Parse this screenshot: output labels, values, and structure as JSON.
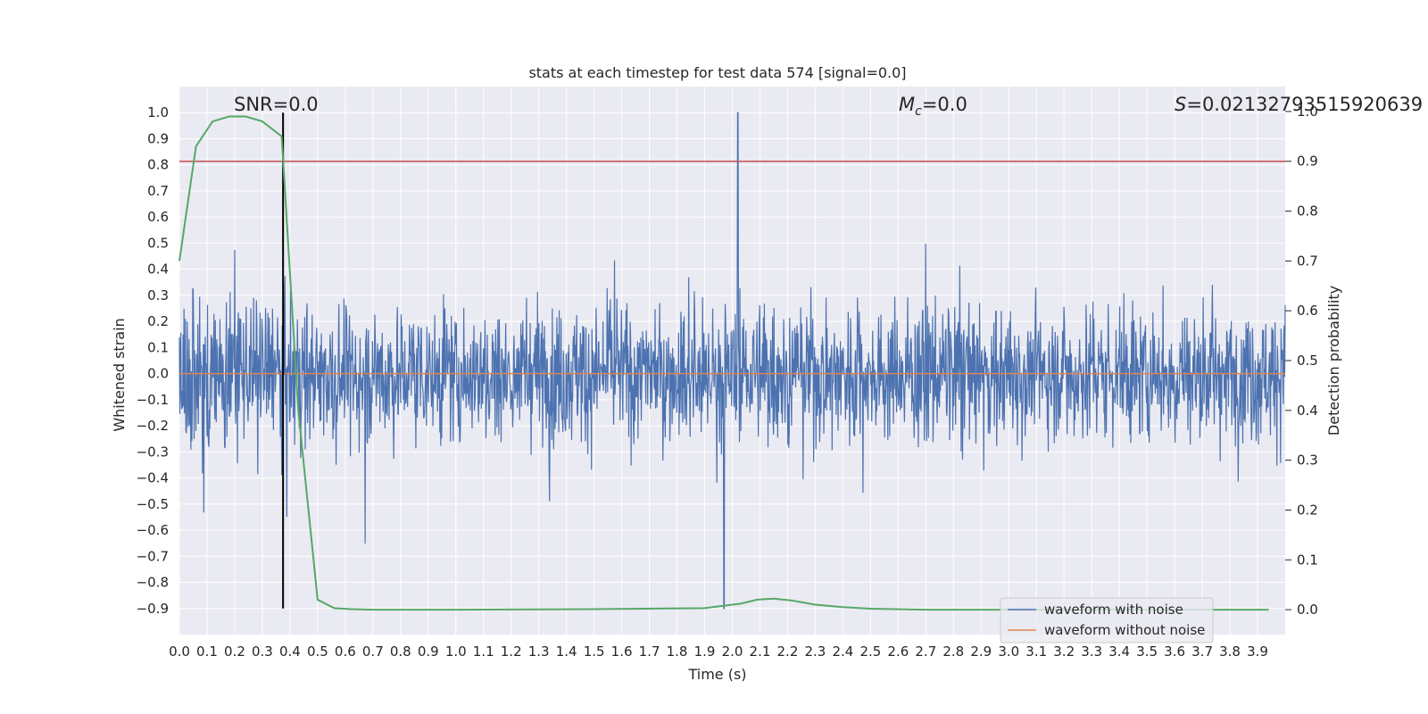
{
  "chart_data": {
    "type": "line",
    "title": "stats at each timestep for test data 574 [signal=0.0]",
    "xlabel": "Time (s)",
    "ylabel": "Whitened strain",
    "y2label": "Detection probability",
    "xlim": [
      0.0,
      4.0
    ],
    "ylim": [
      -1.0,
      1.1
    ],
    "y2lim": [
      -0.05,
      1.05
    ],
    "grid": true,
    "x_ticks": [
      "0.0",
      "0.1",
      "0.2",
      "0.3",
      "0.4",
      "0.5",
      "0.6",
      "0.7",
      "0.8",
      "0.9",
      "1.0",
      "1.1",
      "1.2",
      "1.3",
      "1.4",
      "1.5",
      "1.6",
      "1.7",
      "1.8",
      "1.9",
      "2.0",
      "2.1",
      "2.2",
      "2.3",
      "2.4",
      "2.5",
      "2.6",
      "2.7",
      "2.8",
      "2.9",
      "3.0",
      "3.1",
      "3.2",
      "3.3",
      "3.4",
      "3.5",
      "3.6",
      "3.7",
      "3.8",
      "3.9"
    ],
    "y_ticks": [
      "1.0",
      "0.9",
      "0.8",
      "0.7",
      "0.6",
      "0.5",
      "0.4",
      "0.3",
      "0.2",
      "0.1",
      "0.0",
      "-0.1",
      "-0.2",
      "-0.3",
      "-0.4",
      "-0.5",
      "-0.6",
      "-0.7",
      "-0.8",
      "-0.9"
    ],
    "y2_ticks": [
      "1.0",
      "0.9",
      "0.8",
      "0.7",
      "0.6",
      "0.5",
      "0.4",
      "0.3",
      "0.2",
      "0.1",
      "0.0"
    ],
    "annotations": {
      "snr": "SNR=0.0",
      "mc_symbol": "M",
      "mc_sub": "c",
      "mc_value": "=0.0",
      "s_symbol": "S",
      "s_value": "=0.0213279351592063​9"
    },
    "series": [
      {
        "name": "waveform with noise",
        "color": "#4c72b0",
        "amplitude_range": [
          -0.9,
          1.0
        ],
        "note": "dense noise trace"
      },
      {
        "name": "waveform without noise",
        "color": "#dd8452",
        "values_constant": 0.0
      },
      {
        "name": "detection probability",
        "color": "#55a868",
        "axis": "y2",
        "x": [
          0.0,
          0.06,
          0.12,
          0.18,
          0.24,
          0.3,
          0.37,
          0.43,
          0.5,
          0.56,
          0.62,
          0.7,
          1.0,
          1.5,
          1.9,
          1.97,
          2.03,
          2.09,
          2.15,
          2.22,
          2.3,
          2.4,
          2.5,
          2.7,
          3.0,
          3.5,
          3.94
        ],
        "values": [
          0.7,
          0.93,
          0.98,
          0.99,
          0.99,
          0.98,
          0.95,
          0.4,
          0.02,
          0.003,
          0.001,
          0.0,
          0.0,
          0.001,
          0.003,
          0.008,
          0.012,
          0.02,
          0.022,
          0.018,
          0.01,
          0.005,
          0.002,
          0.0,
          0.0,
          0.0,
          0.0
        ]
      }
    ],
    "threshold_line": {
      "value": 0.9,
      "axis": "y2",
      "color": "#c44e52"
    },
    "vertical_marker": {
      "x": 0.375,
      "y_range": [
        -0.9,
        1.0
      ],
      "color": "#000000"
    },
    "legend": {
      "position": "bottom-right",
      "entries": [
        "waveform with noise",
        "waveform without noise"
      ]
    }
  },
  "colors": {
    "plot_bg": "#eaeaf2",
    "grid": "#ffffff",
    "noise": "#4c72b0",
    "clean": "#dd8452",
    "prob": "#55a868",
    "threshold": "#c44e52"
  }
}
